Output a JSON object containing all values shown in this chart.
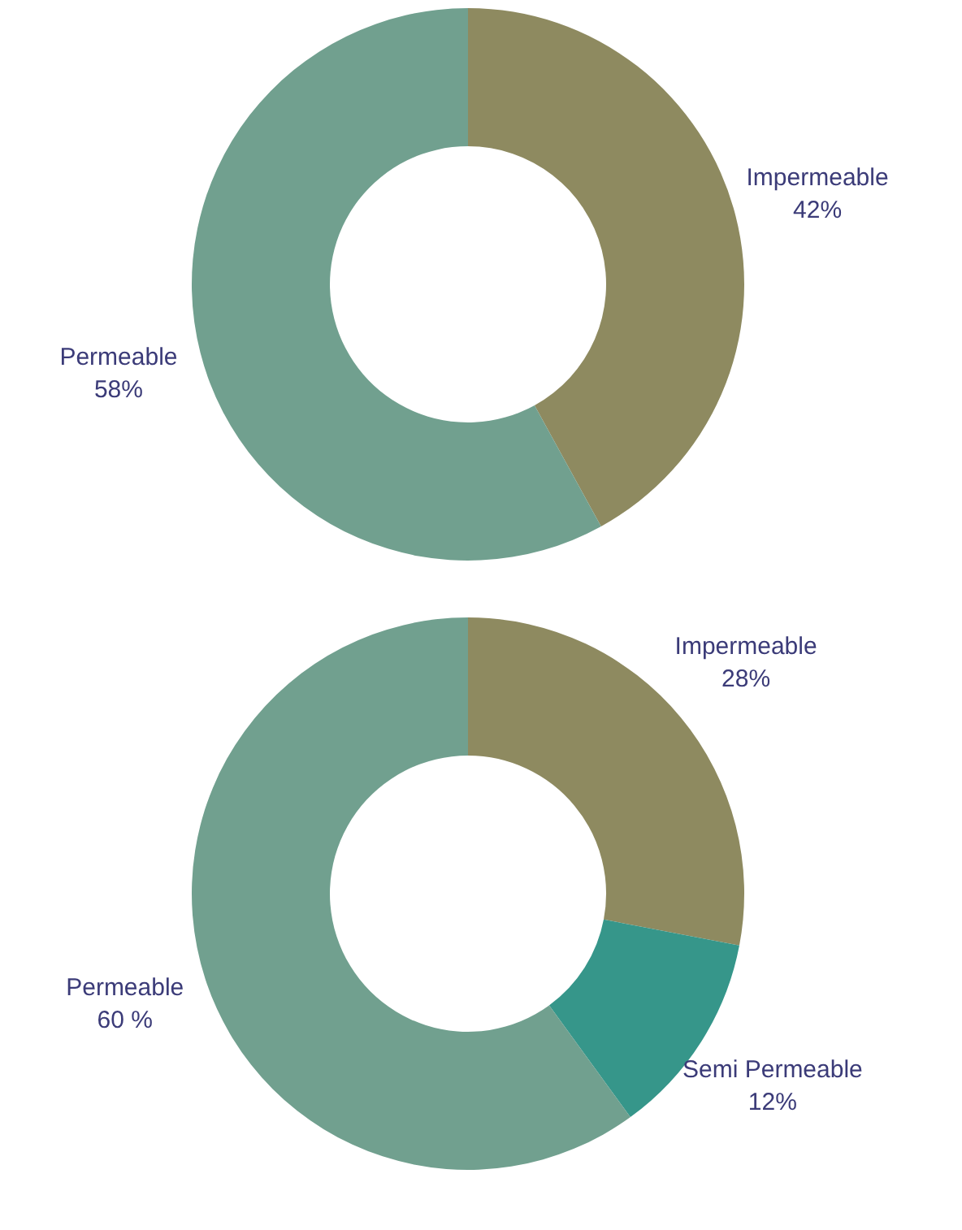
{
  "chart_data": [
    {
      "type": "donut",
      "categories": [
        "Impermeable",
        "Permeable"
      ],
      "values": [
        42,
        58
      ],
      "colors": [
        "#8e8a60",
        "#71a08f"
      ],
      "value_labels": [
        "42%",
        "58%"
      ]
    },
    {
      "type": "donut",
      "categories": [
        "Impermeable",
        "Semi Permeable",
        "Permeable"
      ],
      "values": [
        28,
        12,
        60
      ],
      "colors": [
        "#8e8a60",
        "#36968a",
        "#71a08f"
      ],
      "value_labels": [
        "28%",
        "12%",
        "60 %"
      ]
    }
  ]
}
